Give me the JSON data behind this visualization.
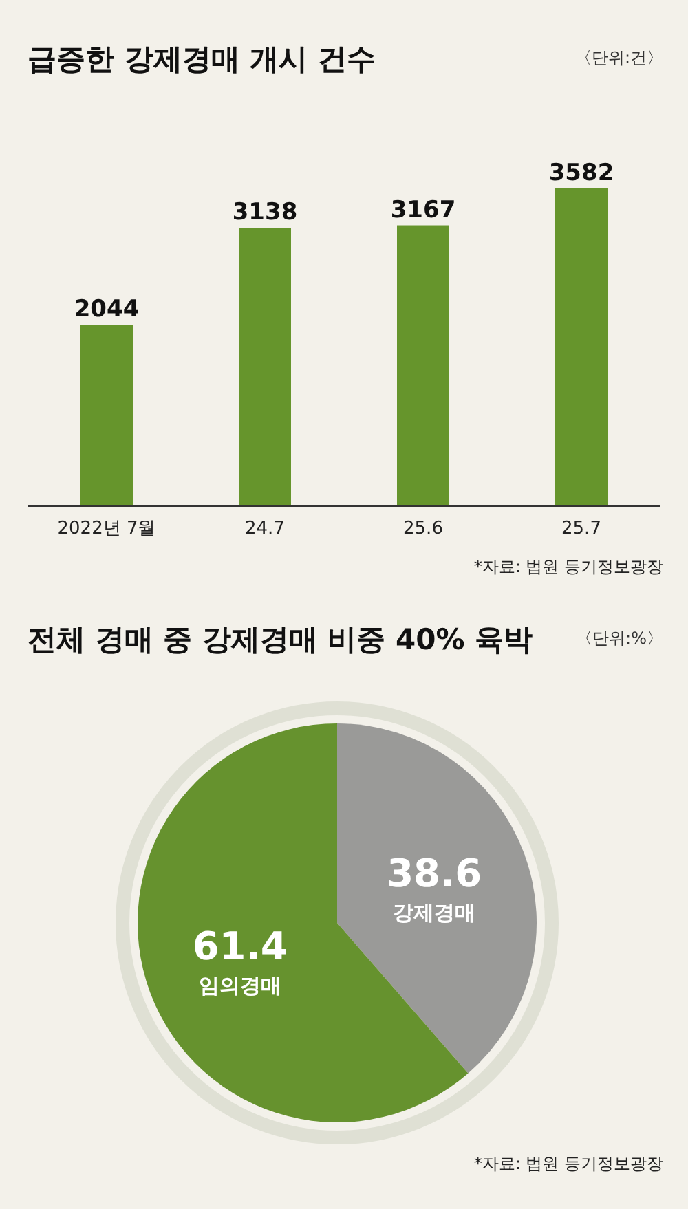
{
  "chart_data": [
    {
      "type": "bar",
      "title": "급증한 강제경매 개시 건수",
      "subtitle": "〈단위:건〉",
      "categories": [
        "2022년 7월",
        "24.7",
        "25.6",
        "25.7"
      ],
      "values": [
        2044,
        3138,
        3167,
        3582
      ],
      "color": "#66952c",
      "data_labels": true,
      "annotations": [
        "*자료: 법원 등기정보광장"
      ]
    },
    {
      "type": "pie",
      "title": "전체 경매 중 강제경매 비중 40% 육박",
      "subtitle": "〈단위:%〉",
      "categories": [
        "강제경매",
        "임의경매"
      ],
      "values": [
        38.6,
        61.4
      ],
      "colors": [
        "#9a9a98",
        "#66922e"
      ],
      "data_labels": true,
      "annotations": [
        "*자료: 법원 등기정보광장"
      ]
    }
  ]
}
